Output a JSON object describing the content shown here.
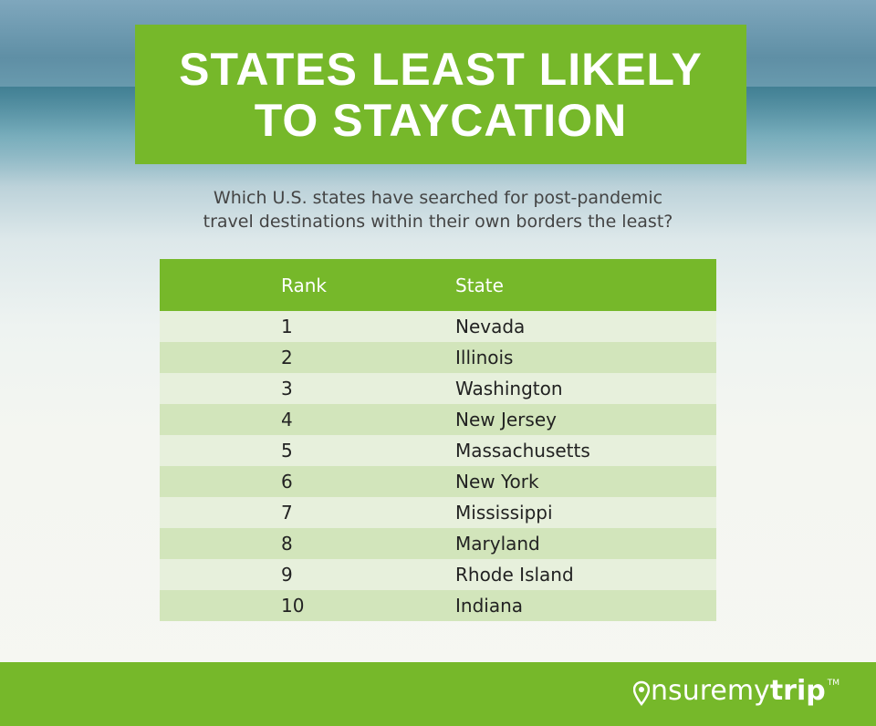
{
  "header": {
    "title": [
      "STATES LEAST LIKELY",
      "TO STAYCATION"
    ],
    "subtitle": [
      "Which U.S. states have searched for post-pandemic",
      "travel destinations within their own borders the least?"
    ]
  },
  "table": {
    "columns": [
      "Rank",
      "State"
    ],
    "rows": [
      [
        "1",
        "Nevada"
      ],
      [
        "2",
        "Illinois"
      ],
      [
        "3",
        "Washington"
      ],
      [
        "4",
        "New Jersey"
      ],
      [
        "5",
        "Massachusetts"
      ],
      [
        "6",
        "New York"
      ],
      [
        "7",
        "Mississippi"
      ],
      [
        "8",
        "Maryland"
      ],
      [
        "9",
        "Rhode Island"
      ],
      [
        "10",
        "Indiana"
      ]
    ]
  },
  "footer": {
    "logo": {
      "light": "nsuremy",
      "bold": "trip",
      "mark": "TM"
    }
  }
}
